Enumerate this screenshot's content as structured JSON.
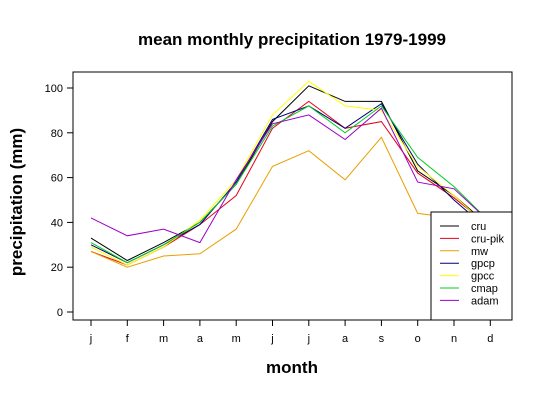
{
  "chart_data": {
    "type": "line",
    "title": "mean monthly precipitation 1979-1999",
    "xlabel": "month",
    "ylabel": "precipitation (mm)",
    "categories": [
      "j",
      "f",
      "m",
      "a",
      "m",
      "j",
      "j",
      "a",
      "s",
      "o",
      "n",
      "d"
    ],
    "ylim": [
      0,
      100
    ],
    "yticks": [
      0,
      20,
      40,
      60,
      80,
      100
    ],
    "grid": false,
    "legend_position": "bottom-right",
    "series": [
      {
        "name": "cru",
        "color": "#000000",
        "values": [
          33,
          23,
          31,
          40,
          57,
          85,
          101,
          94,
          94,
          63,
          52,
          38
        ]
      },
      {
        "name": "cru-pik",
        "color": "#e8001c",
        "values": [
          27,
          21,
          29,
          39,
          52,
          82,
          94,
          82,
          85,
          62,
          51,
          38
        ]
      },
      {
        "name": "mw",
        "color": "#e8a000",
        "values": [
          27,
          20,
          25,
          26,
          37,
          65,
          72,
          59,
          78,
          44,
          42,
          36
        ]
      },
      {
        "name": "gpcp",
        "color": "#00007a",
        "values": [
          30,
          22,
          30,
          39,
          58,
          86,
          92,
          82,
          93,
          66,
          50,
          36
        ]
      },
      {
        "name": "gpcc",
        "color": "#ffff00",
        "values": [
          29,
          21,
          29,
          41,
          59,
          88,
          103,
          92,
          90,
          65,
          52,
          37
        ]
      },
      {
        "name": "cmap",
        "color": "#00cc22",
        "values": [
          31,
          22,
          30,
          40,
          57,
          83,
          92,
          80,
          92,
          69,
          56,
          40
        ]
      },
      {
        "name": "adam",
        "color": "#9b00c8",
        "values": [
          42,
          34,
          37,
          31,
          59,
          84,
          88,
          77,
          91,
          58,
          55,
          40
        ]
      }
    ]
  }
}
